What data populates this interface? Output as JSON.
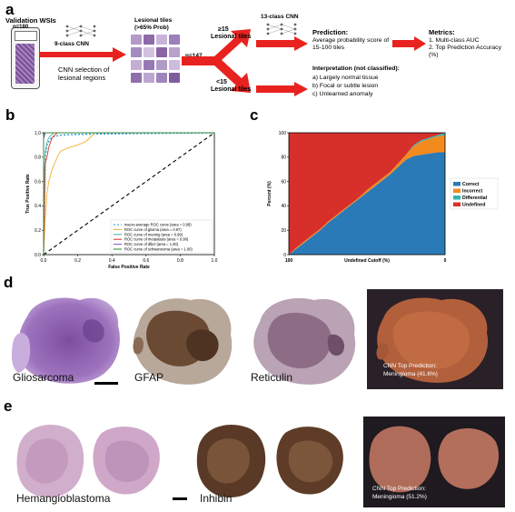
{
  "panel_a": {
    "letter": "a",
    "wsi_title": "Validation WSIs",
    "wsi_n": "n=180",
    "cnn9_label": "9-class CNN",
    "cnn_selection": "CNN selection of lesional regions",
    "lesional_tiles_title": "Lesional tiles",
    "lesional_tiles_sub": "(>65% Prob)",
    "n147": "n=147",
    "ge15_num": "≥15",
    "ge15_label": "Lesional tiles",
    "lt15_num": "<15",
    "lt15_label": "Lesional tiles",
    "cnn13_label": "13-class CNN",
    "prediction_title": "Prediction:",
    "prediction_text": "Average probability score of 15-100 tiles",
    "metrics_title": "Metrics:",
    "metrics_items": [
      "1. Multi-class AUC",
      "2. Top Prediction Accuracy (%)"
    ],
    "interp_title": "Interpretation (not classified):",
    "interp_items": [
      "a) Largely normal tissue",
      "b) Focal or subtle lesion",
      "c) Unlearned anomaly"
    ],
    "accent": "#e8231f"
  },
  "panel_b": {
    "letter": "b",
    "chart_data": {
      "type": "line",
      "xlabel": "False Positive Rate",
      "ylabel": "True Positive Rate",
      "xlim": [
        0,
        1
      ],
      "ylim": [
        0,
        1
      ],
      "x_ticks": [
        "0.0",
        "0.2",
        "0.4",
        "0.6",
        "0.8",
        "1.0"
      ],
      "y_ticks": [
        "0.0",
        "0.2",
        "0.4",
        "0.6",
        "0.8",
        "1.0"
      ],
      "legend_position": "bottom-right",
      "series": [
        {
          "name": "macro-average ROC curve (area = 0.98)",
          "color": "#1f9ad6",
          "dash": "2,2",
          "x": [
            0,
            0.01,
            0.02,
            0.04,
            0.06,
            0.1,
            0.15,
            0.3,
            1.0
          ],
          "y": [
            0,
            0.8,
            0.9,
            0.95,
            0.97,
            0.98,
            0.985,
            0.99,
            1.0
          ]
        },
        {
          "name": "ROC curve of glioma (area = 0.97)",
          "color": "#f2b233",
          "dash": "",
          "x": [
            0,
            0.01,
            0.02,
            0.03,
            0.05,
            0.08,
            0.1,
            0.15,
            0.2,
            0.25,
            0.3,
            1.0
          ],
          "y": [
            0,
            0.3,
            0.5,
            0.6,
            0.7,
            0.8,
            0.85,
            0.88,
            0.9,
            0.93,
            1.0,
            1.0
          ]
        },
        {
          "name": "ROC curve of mening (area = 0.99)",
          "color": "#5ab4ac",
          "dash": "",
          "x": [
            0,
            0.005,
            0.01,
            0.02,
            0.03,
            0.06,
            1.0
          ],
          "y": [
            0,
            0.7,
            0.85,
            0.92,
            0.96,
            1.0,
            1.0
          ]
        },
        {
          "name": "ROC curve of metastasis (area = 0.98)",
          "color": "#d83a2a",
          "dash": "",
          "x": [
            0,
            0.01,
            0.02,
            0.03,
            0.04,
            0.05,
            0.08,
            1.0
          ],
          "y": [
            0,
            0.75,
            0.8,
            0.88,
            0.92,
            0.96,
            1.0,
            1.0
          ]
        },
        {
          "name": "ROC curve of dlbcl (area = 1.00)",
          "color": "#8a5cc4",
          "dash": "",
          "x": [
            0,
            0.0,
            0.01,
            1.0
          ],
          "y": [
            0,
            0.95,
            1.0,
            1.0
          ]
        },
        {
          "name": "ROC curve of schwannoma (area = 1.00)",
          "color": "#3a8a3a",
          "dash": "",
          "x": [
            0,
            0.0,
            0.005,
            1.0
          ],
          "y": [
            0,
            0.97,
            1.0,
            1.0
          ]
        }
      ]
    }
  },
  "panel_c": {
    "letter": "c",
    "chart_data": {
      "type": "area",
      "xlabel": "Undefined Cutoff (%)",
      "ylabel": "Percent (%)",
      "x_tick_left": "100",
      "x_tick_right": "0",
      "y_ticks": [
        "0",
        "20",
        "40",
        "60",
        "80",
        "100"
      ],
      "ylim": [
        0,
        100
      ],
      "legend_position": "right",
      "cutoff": [
        100,
        95,
        90,
        85,
        80,
        75,
        70,
        65,
        60,
        55,
        50,
        45,
        40,
        35,
        30,
        25,
        20,
        15,
        10,
        5,
        0
      ],
      "series": [
        {
          "name": "Correct",
          "color": "#2a7ab8",
          "values": [
            0,
            5,
            10,
            15,
            20,
            26,
            31,
            36,
            41,
            46,
            51,
            56,
            61,
            66,
            72,
            78,
            81,
            82,
            83,
            84,
            84
          ]
        },
        {
          "name": "Incorrect",
          "color": "#f28a1e",
          "values": [
            0,
            1,
            1,
            1,
            1,
            1,
            1,
            1,
            1,
            1,
            2,
            2,
            2,
            2,
            3,
            4,
            8,
            11,
            12,
            13,
            14
          ]
        },
        {
          "name": "Differential",
          "color": "#2fb6b0",
          "values": [
            0,
            0,
            0,
            0,
            0,
            0,
            0,
            0,
            0,
            0,
            0,
            0,
            0,
            0,
            0,
            0,
            1,
            1,
            1,
            1,
            2
          ]
        },
        {
          "name": "Undefined",
          "color": "#d7302a",
          "values": [
            100,
            94,
            89,
            84,
            79,
            73,
            68,
            63,
            58,
            53,
            47,
            42,
            37,
            32,
            25,
            18,
            10,
            6,
            4,
            2,
            0
          ]
        }
      ]
    }
  },
  "panel_d": {
    "letter": "d",
    "labels": [
      "Gliosarcoma",
      "GFAP",
      "Reticulin"
    ],
    "prediction_line1": "CNN Top Prediction:",
    "prediction_line2": "Meningioma (41.6%)"
  },
  "panel_e": {
    "letter": "e",
    "labels": [
      "Hemangioblastoma",
      "Inhibin"
    ],
    "prediction_line1": "CNN Top Prediction:",
    "prediction_line2": "Meningioma (51.2%)"
  }
}
